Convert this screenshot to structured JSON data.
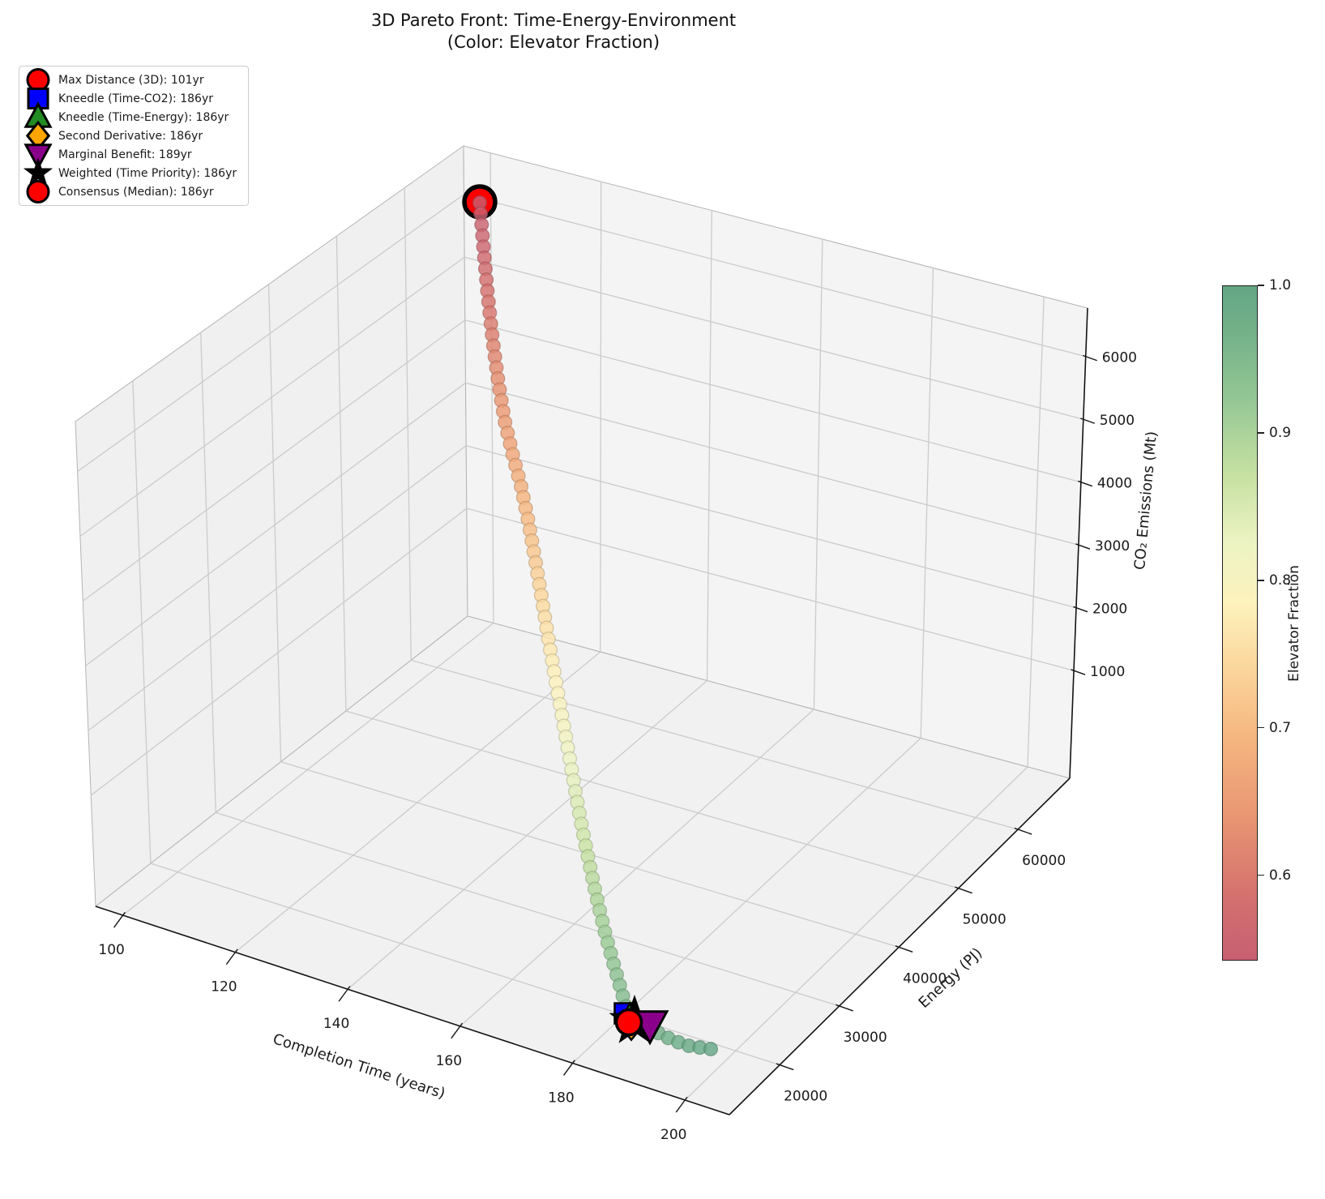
{
  "title": {
    "line1": "3D Pareto Front: Time-Energy-Environment",
    "line2": "(Color: Elevator Fraction)"
  },
  "legend": {
    "items": [
      {
        "label": "Max Distance (3D): 101yr",
        "marker": "circle",
        "color": "#ff0000"
      },
      {
        "label": "Kneedle (Time-CO2): 186yr",
        "marker": "square",
        "color": "#0000ff"
      },
      {
        "label": "Kneedle (Time-Energy): 186yr",
        "marker": "triangle-up",
        "color": "#228b22"
      },
      {
        "label": "Second Derivative: 186yr",
        "marker": "diamond",
        "color": "#ffa500"
      },
      {
        "label": "Marginal Benefit: 189yr",
        "marker": "triangle-down",
        "color": "#8b008b"
      },
      {
        "label": "Weighted (Time Priority): 186yr",
        "marker": "star",
        "color": "#000000"
      },
      {
        "label": "Consensus (Median): 186yr",
        "marker": "circle",
        "color": "#ff0000"
      }
    ]
  },
  "axes": {
    "x": {
      "label": "Completion Time (years)",
      "ticks": [
        "100",
        "120",
        "140",
        "160",
        "180",
        "200"
      ],
      "range": [
        95,
        205
      ]
    },
    "y": {
      "label": "Energy (PJ)",
      "ticks": [
        "20000",
        "30000",
        "40000",
        "50000",
        "60000"
      ],
      "range": [
        12000,
        68500
      ]
    },
    "z": {
      "label": "CO₂ Emissions (Mt)",
      "ticks": [
        "1000",
        "2000",
        "3000",
        "4000",
        "5000",
        "6000"
      ],
      "range": [
        -700,
        6900
      ]
    }
  },
  "colorbar": {
    "label": "Elevator Fraction",
    "ticks": [
      "1.0",
      "0.9",
      "0.8",
      "0.7",
      "0.6"
    ],
    "tick_values": [
      1.0,
      0.9,
      0.8,
      0.7,
      0.6
    ],
    "value_range": [
      0.542,
      1.0
    ],
    "gradient_stops": [
      {
        "t": 0.0,
        "color": "#c75f72"
      },
      {
        "t": 0.1,
        "color": "#d5726e"
      },
      {
        "t": 0.22,
        "color": "#ea9873"
      },
      {
        "t": 0.33,
        "color": "#f5b680"
      },
      {
        "t": 0.44,
        "color": "#fbd89e"
      },
      {
        "t": 0.53,
        "color": "#fdf2bd"
      },
      {
        "t": 0.62,
        "color": "#ecf3c3"
      },
      {
        "t": 0.72,
        "color": "#c6e1a1"
      },
      {
        "t": 0.83,
        "color": "#95c795"
      },
      {
        "t": 0.93,
        "color": "#74b189"
      },
      {
        "t": 1.0,
        "color": "#64a685"
      }
    ]
  },
  "chart_data": {
    "type": "scatter",
    "subtype": "3d-pareto-front",
    "title": "3D Pareto Front: Time-Energy-Environment (Color: Elevator Fraction)",
    "xlabel": "Completion Time (years)",
    "ylabel": "Energy (PJ)",
    "zlabel": "CO₂ Emissions (Mt)",
    "color_by": "Elevator Fraction",
    "colormap": "RdYlGn (muted / alpha-blended)",
    "xlim": [
      95,
      205
    ],
    "ylim": [
      12000,
      68500
    ],
    "zlim": [
      -700,
      6900
    ],
    "color_range": [
      0.55,
      1.0
    ],
    "grid": true,
    "legend_position": "upper left",
    "pareto_front": {
      "elevator_fraction": [
        0.55,
        0.575,
        0.6,
        0.625,
        0.65,
        0.675,
        0.7,
        0.725,
        0.75,
        0.775,
        0.8,
        0.825,
        0.85,
        0.875,
        0.9,
        0.925,
        0.95,
        0.975,
        1.0
      ],
      "completion_time_years": [
        101,
        107,
        112,
        118,
        123,
        129,
        134,
        140,
        145,
        151,
        156,
        162,
        167,
        173,
        178,
        186,
        189,
        195,
        203
      ],
      "energy_pj": [
        67000,
        62000,
        57500,
        53500,
        49500,
        46000,
        42500,
        39500,
        36500,
        34000,
        31500,
        29000,
        27000,
        25200,
        23500,
        22000,
        21000,
        20000,
        19000
      ],
      "co2_emissions_mt": [
        6800,
        6100,
        5400,
        4800,
        4200,
        3650,
        3150,
        2700,
        2300,
        1950,
        1600,
        1300,
        1050,
        820,
        600,
        420,
        280,
        180,
        100
      ]
    },
    "knee_points": [
      {
        "method": "Max Distance (3D)",
        "time_yr": 101,
        "marker": "circle",
        "color": "#ff0000"
      },
      {
        "method": "Kneedle (Time-CO2)",
        "time_yr": 186,
        "marker": "square",
        "color": "#0000ff"
      },
      {
        "method": "Kneedle (Time-Energy)",
        "time_yr": 186,
        "marker": "triangle-up",
        "color": "#228b22"
      },
      {
        "method": "Second Derivative",
        "time_yr": 186,
        "marker": "diamond",
        "color": "#ffa500"
      },
      {
        "method": "Marginal Benefit",
        "time_yr": 189,
        "marker": "triangle-down",
        "color": "#8b008b"
      },
      {
        "method": "Weighted (Time Priority)",
        "time_yr": 186,
        "marker": "star",
        "color": "#000000"
      },
      {
        "method": "Consensus (Median)",
        "time_yr": 186,
        "marker": "circle",
        "color": "#ff0000"
      }
    ]
  }
}
